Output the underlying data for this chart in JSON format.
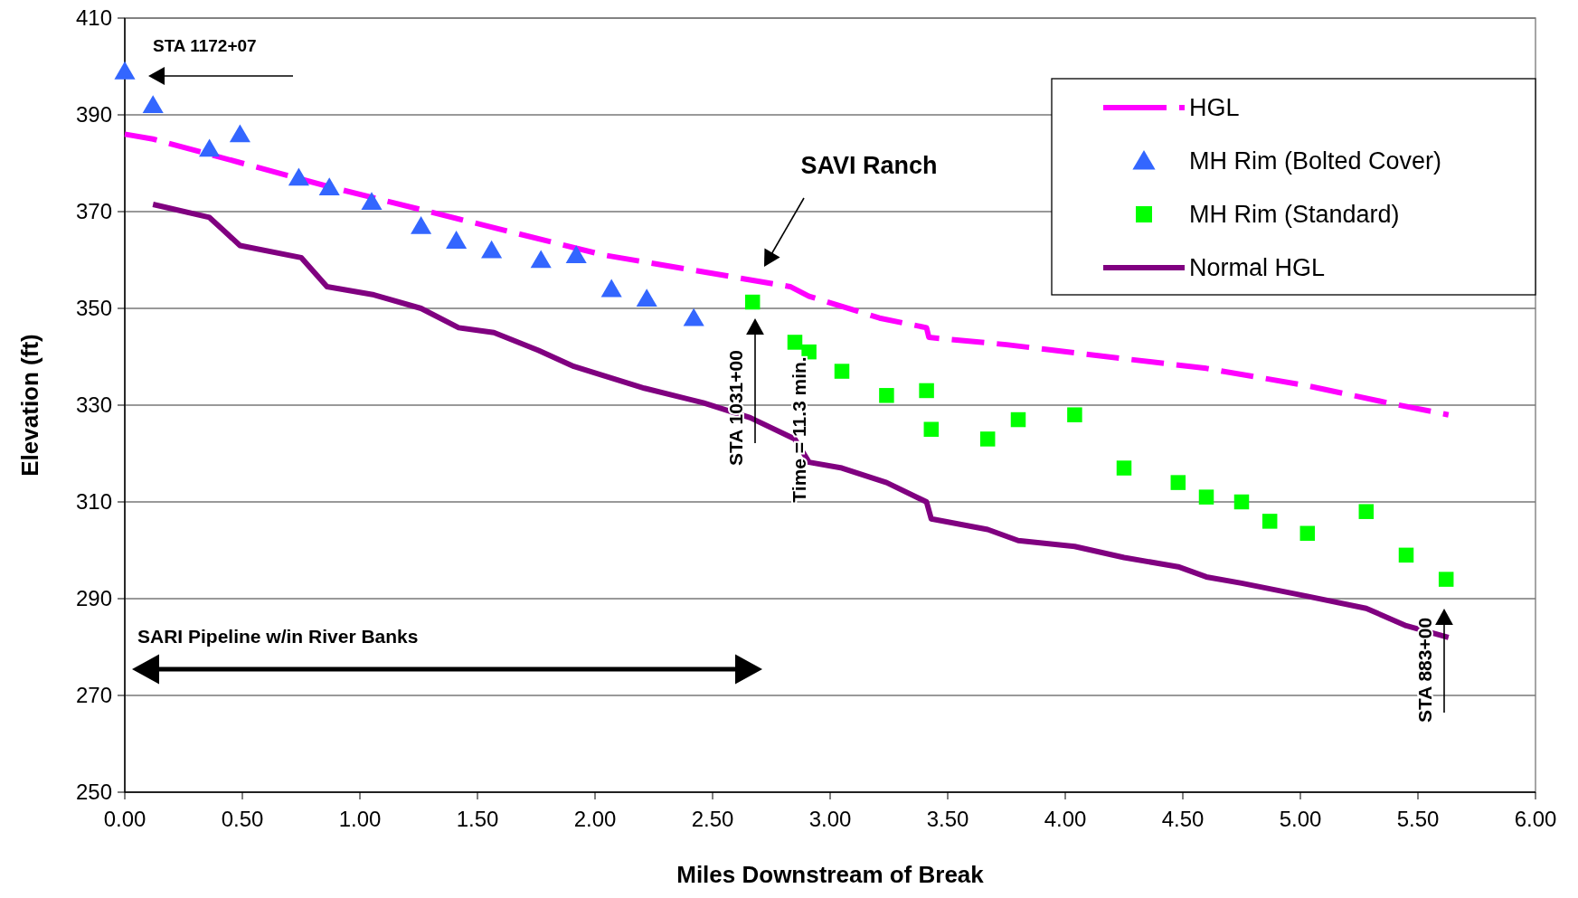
{
  "chart_data": {
    "type": "line",
    "xlabel": "Miles Downstream of Break",
    "ylabel": "Elevation (ft)",
    "xlim": [
      0,
      6
    ],
    "xticks": [
      {
        "value": 0,
        "label": "0.00"
      },
      {
        "value": 0.5,
        "label": "0.50"
      },
      {
        "value": 1,
        "label": "1.00"
      },
      {
        "value": 1.5,
        "label": "1.50"
      },
      {
        "value": 2,
        "label": "2.00"
      },
      {
        "value": 2.5,
        "label": "2.50"
      },
      {
        "value": 3,
        "label": "3.00"
      },
      {
        "value": 3.5,
        "label": "3.50"
      },
      {
        "value": 4,
        "label": "4.00"
      },
      {
        "value": 4.5,
        "label": "4.50"
      },
      {
        "value": 5,
        "label": "5.00"
      },
      {
        "value": 5.5,
        "label": "5.50"
      },
      {
        "value": 6,
        "label": "6.00"
      }
    ],
    "ylim": [
      250,
      410
    ],
    "yticks": [
      250,
      270,
      290,
      310,
      330,
      350,
      370,
      390,
      410
    ],
    "grid": "y",
    "legend": "top right",
    "series": [
      {
        "name": "HGL",
        "line_style": "dashed",
        "marker": "none",
        "color": "#ff00ff",
        "x": [
          0,
          0.12,
          0.5,
          0.88,
          2.04,
          2.83,
          2.91,
          3.21,
          3.41,
          3.42,
          3.75,
          4.18,
          4.6,
          5.03,
          5.37,
          5.63
        ],
        "values": [
          386,
          385,
          380,
          375,
          361,
          354.5,
          352.5,
          348,
          346,
          344,
          342.5,
          340,
          337.6,
          334,
          330.5,
          328
        ]
      },
      {
        "name": "MH Rim (Bolted Cover)",
        "type": "scatter",
        "marker": "triangle",
        "color": "#3366ff",
        "x": [
          0,
          0.12,
          0.36,
          0.49,
          0.74,
          0.87,
          1.05,
          1.26,
          1.41,
          1.56,
          1.77,
          1.92,
          2.07,
          2.22,
          2.42
        ],
        "values": [
          399,
          392,
          383,
          386,
          377,
          375,
          372,
          367,
          364,
          362,
          360,
          361,
          354,
          352,
          348
        ]
      },
      {
        "name": "MH Rim (Standard)",
        "type": "scatter",
        "marker": "square",
        "color": "#00ff00",
        "x": [
          2.67,
          2.85,
          2.91,
          3.05,
          3.24,
          3.41,
          3.43,
          3.67,
          3.8,
          4.04,
          4.25,
          4.48,
          4.6,
          4.75,
          4.87,
          5.03,
          5.28,
          5.45,
          5.62
        ],
        "values": [
          351.3,
          343,
          341,
          337,
          332,
          333,
          325,
          323,
          327,
          328,
          317,
          314,
          311,
          310,
          306,
          303.5,
          308,
          299,
          294
        ]
      },
      {
        "name": "Normal HGL",
        "line_style": "solid",
        "marker": "none",
        "color": "#800080",
        "x": [
          0.12,
          0.36,
          0.49,
          0.75,
          0.86,
          1.06,
          1.26,
          1.42,
          1.57,
          1.76,
          1.91,
          2.21,
          2.46,
          2.66,
          2.85,
          2.91,
          3.05,
          3.24,
          3.41,
          3.43,
          3.67,
          3.8,
          4.04,
          4.25,
          4.48,
          4.6,
          4.75,
          5.03,
          5.28,
          5.45,
          5.63
        ],
        "values": [
          371.5,
          368.8,
          363,
          360.5,
          354.5,
          352.8,
          350,
          346,
          345,
          341.3,
          338,
          333.5,
          330.5,
          327.4,
          323,
          318.2,
          317,
          314,
          310,
          306.5,
          304.3,
          302,
          300.8,
          298.5,
          296.6,
          294.5,
          293.2,
          290.5,
          288,
          284.4,
          282
        ]
      }
    ],
    "annotations": [
      "STA 1172+07",
      "SAVI Ranch",
      "STA 1031+00",
      "Time = 11.3 min.",
      "SARI Pipeline w/in River Banks",
      "STA 883+00"
    ]
  }
}
